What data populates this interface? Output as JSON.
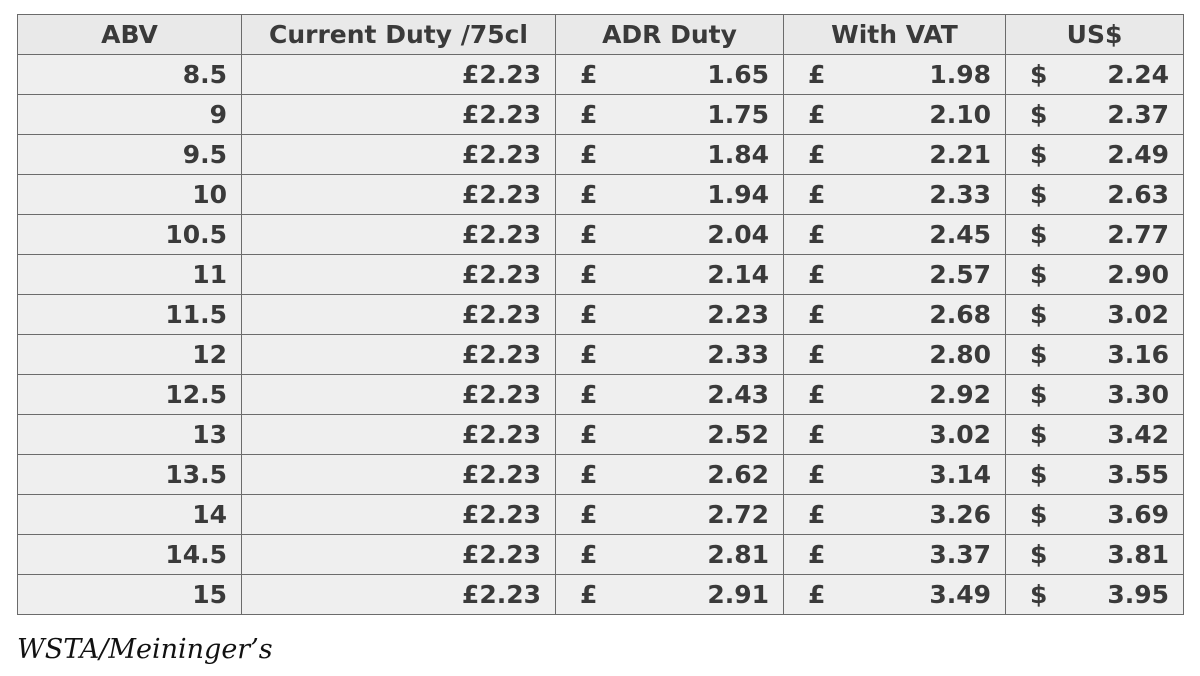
{
  "table": {
    "headers": [
      "ABV",
      "Current Duty /75cl",
      "ADR Duty",
      "With VAT",
      "US$"
    ],
    "gbp_symbol": "£",
    "usd_symbol": "$",
    "rows": [
      {
        "abv": "8.5",
        "current": "£2.23",
        "adr": "1.65",
        "vat": "1.98",
        "usd": "2.24"
      },
      {
        "abv": "9",
        "current": "£2.23",
        "adr": "1.75",
        "vat": "2.10",
        "usd": "2.37"
      },
      {
        "abv": "9.5",
        "current": "£2.23",
        "adr": "1.84",
        "vat": "2.21",
        "usd": "2.49"
      },
      {
        "abv": "10",
        "current": "£2.23",
        "adr": "1.94",
        "vat": "2.33",
        "usd": "2.63"
      },
      {
        "abv": "10.5",
        "current": "£2.23",
        "adr": "2.04",
        "vat": "2.45",
        "usd": "2.77"
      },
      {
        "abv": "11",
        "current": "£2.23",
        "adr": "2.14",
        "vat": "2.57",
        "usd": "2.90"
      },
      {
        "abv": "11.5",
        "current": "£2.23",
        "adr": "2.23",
        "vat": "2.68",
        "usd": "3.02"
      },
      {
        "abv": "12",
        "current": "£2.23",
        "adr": "2.33",
        "vat": "2.80",
        "usd": "3.16"
      },
      {
        "abv": "12.5",
        "current": "£2.23",
        "adr": "2.43",
        "vat": "2.92",
        "usd": "3.30"
      },
      {
        "abv": "13",
        "current": "£2.23",
        "adr": "2.52",
        "vat": "3.02",
        "usd": "3.42"
      },
      {
        "abv": "13.5",
        "current": "£2.23",
        "adr": "2.62",
        "vat": "3.14",
        "usd": "3.55"
      },
      {
        "abv": "14",
        "current": "£2.23",
        "adr": "2.72",
        "vat": "3.26",
        "usd": "3.69"
      },
      {
        "abv": "14.5",
        "current": "£2.23",
        "adr": "2.81",
        "vat": "3.37",
        "usd": "3.81"
      },
      {
        "abv": "15",
        "current": "£2.23",
        "adr": "2.91",
        "vat": "3.49",
        "usd": "3.95"
      }
    ]
  },
  "caption": "WSTA/Meininger’s"
}
